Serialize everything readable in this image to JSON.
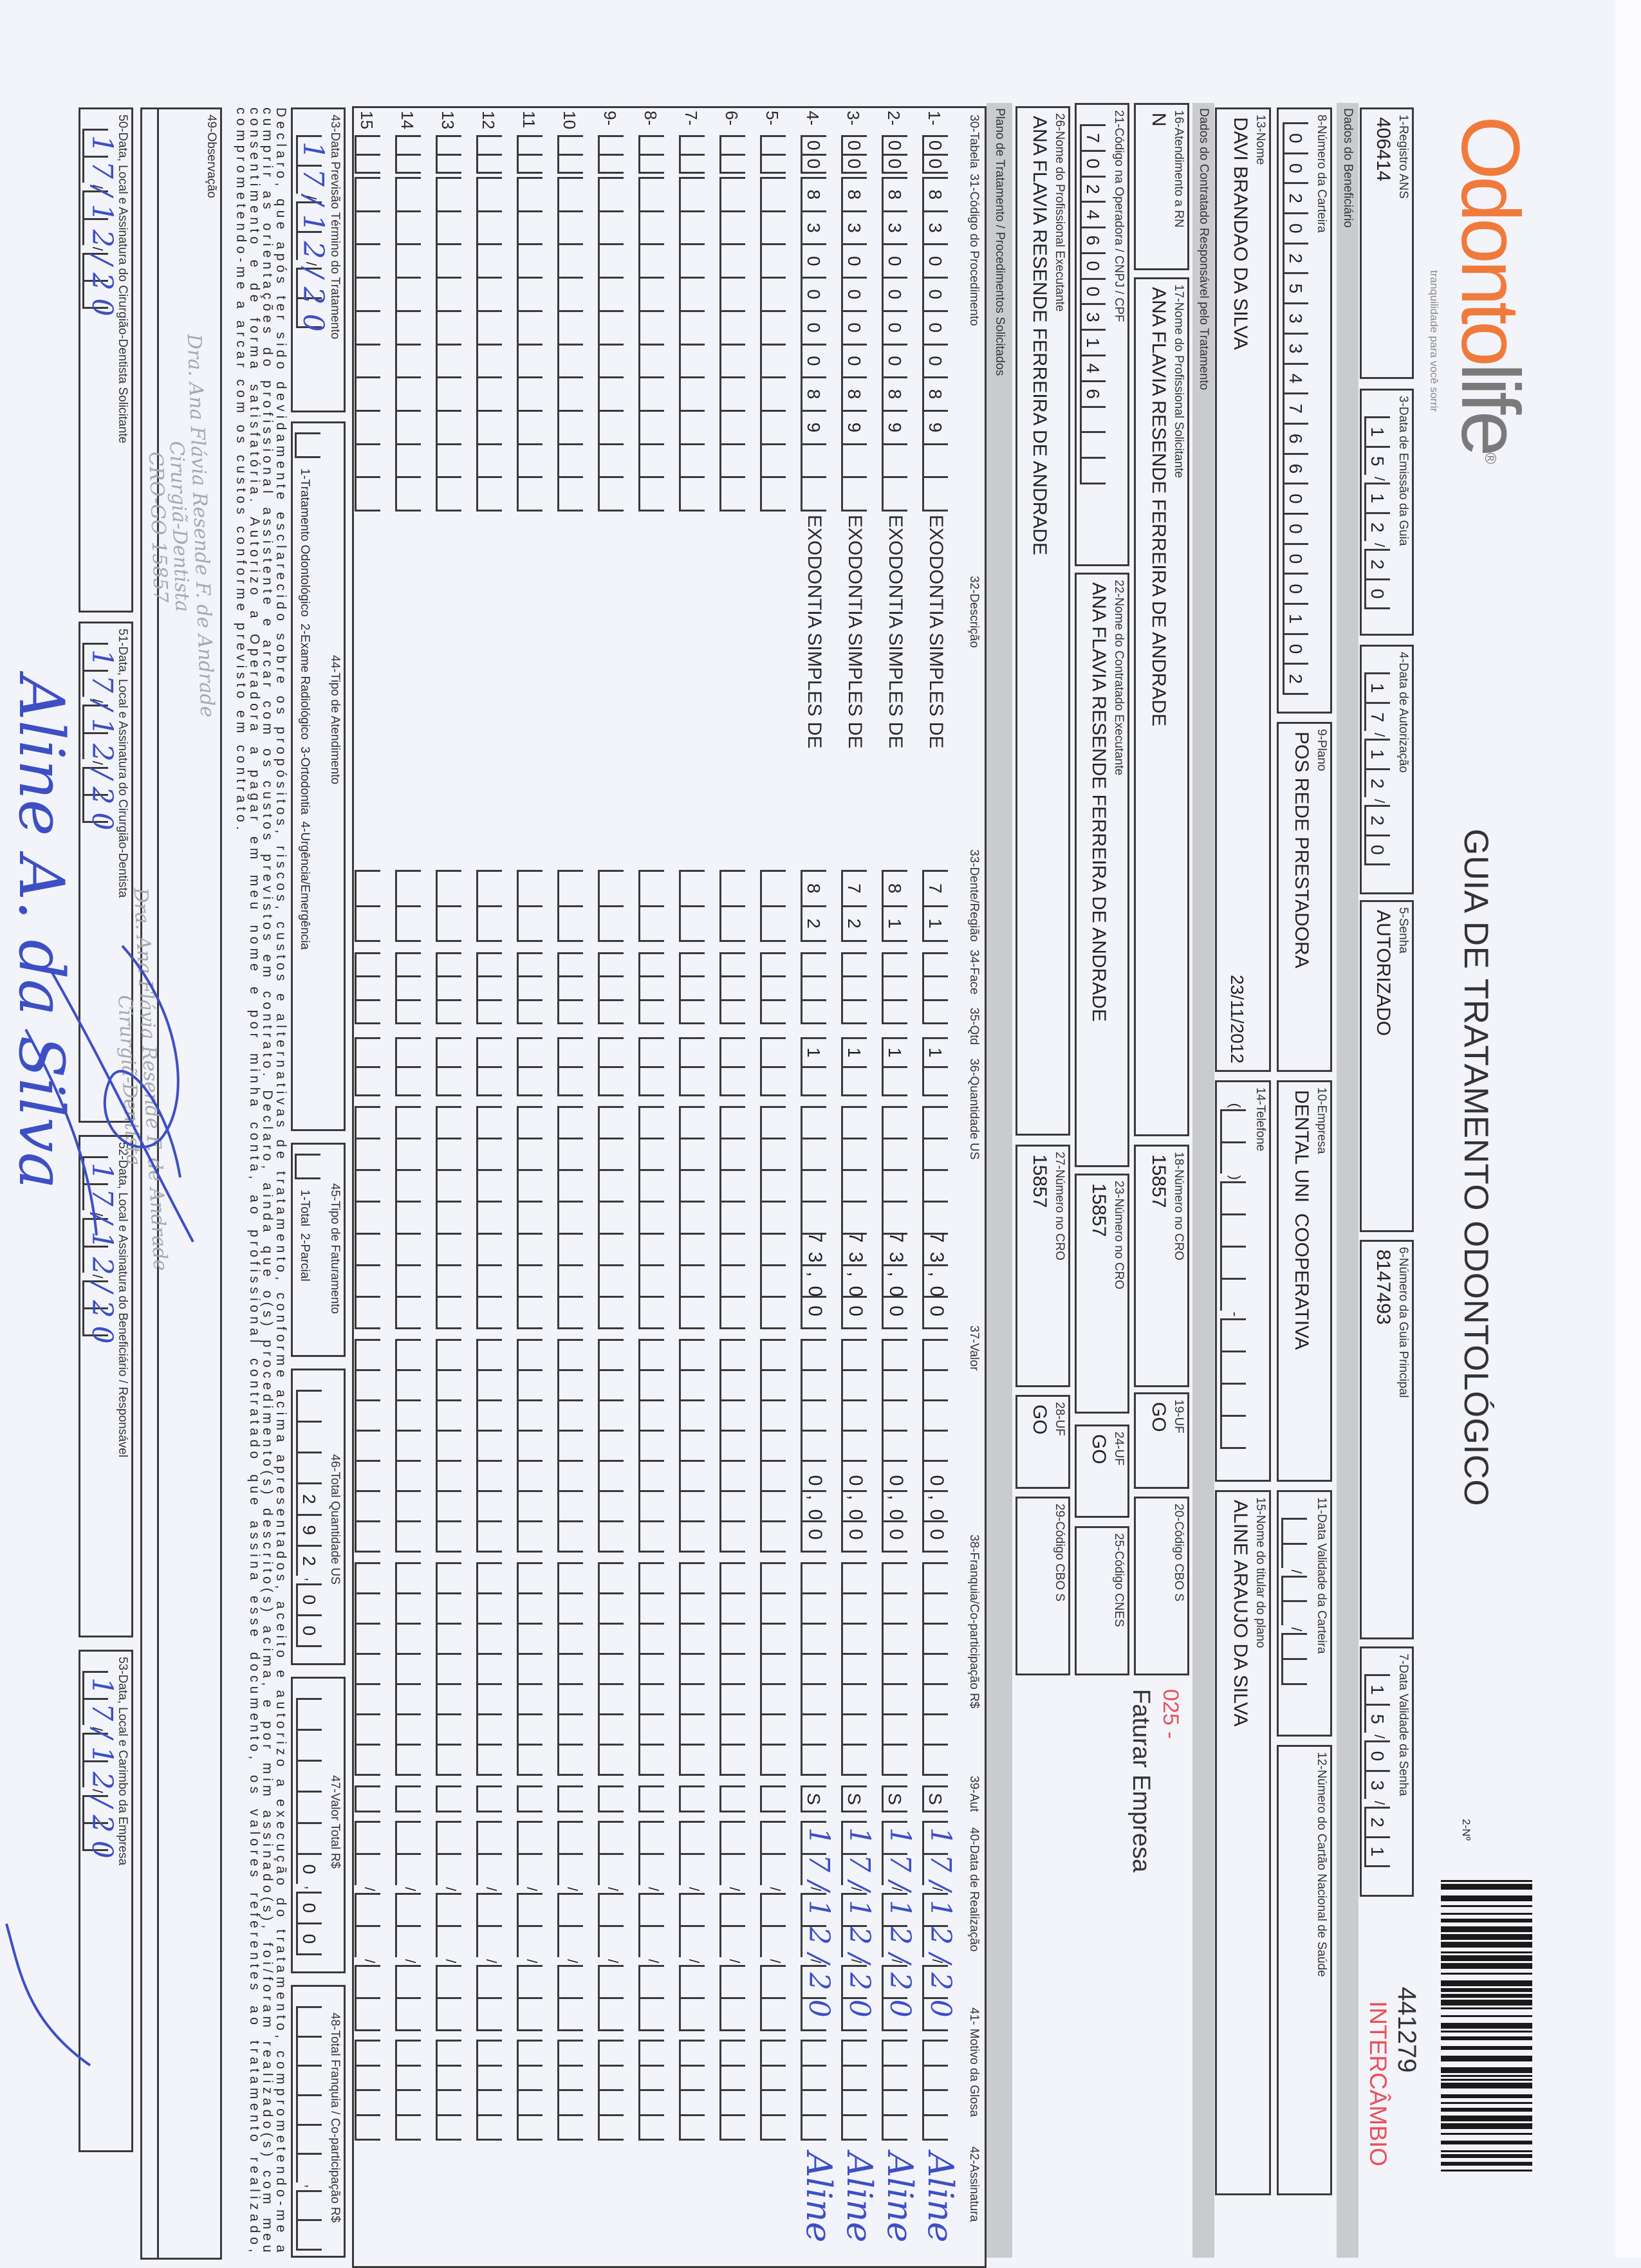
{
  "colors": {
    "logo_orange": "#f07a3c",
    "logo_gray": "#7a7a7a",
    "stamp_red": "#e8505a",
    "ink_blue": "#3d4fc4",
    "section_gray": "#c9cbcf"
  },
  "header": {
    "logo_part1": "Odonto",
    "logo_part2": "life",
    "logo_reg": "®",
    "tagline": "tranquilidade para você sorrir",
    "title": "GUIA DE TRATAMENTO ODONTOLÓGICO",
    "guide_number_label": "2-Nº",
    "guide_number": "441279",
    "intercambio": "INTERCÂMBIO",
    "barcode_icon": "barcode"
  },
  "sections": {
    "beneficiario": "Dados do Beneficiário",
    "contratado": "Dados do Contratado Responsável pelo Tratamento",
    "plano": "Plano de Tratamento / Procedimentos Solicitados"
  },
  "fields": {
    "f1": {
      "label": "1-Registro ANS",
      "value": "406414"
    },
    "f3": {
      "label": "3-Data de Emissão da Guia",
      "value": "15/12/20"
    },
    "f4": {
      "label": "4-Data de Autorização",
      "value": "17/12/20"
    },
    "f5": {
      "label": "5-Senha",
      "value": "AUTORIZADO"
    },
    "f6": {
      "label": "6-Número da Guia Principal",
      "value": "8147493"
    },
    "f7": {
      "label": "7-Data Validade da Senha",
      "value": "15/03/21"
    },
    "f8": {
      "label": "8-Número da Carteira",
      "value": "0020253347660000102"
    },
    "f9": {
      "label": "9-Plano",
      "value": "POS REDE PRESTADORA"
    },
    "f10": {
      "label": "10-Empresa",
      "value": "DENTAL UNI  COOPERATIVA"
    },
    "f11": {
      "label": "11-Data Validade da Carteira",
      "value": ""
    },
    "f12": {
      "label": "12-Número do Cartão Nacional de Saúde",
      "value": ""
    },
    "f13": {
      "label": "13-Nome",
      "value": "DAVI BRANDAO DA SILVA",
      "extra": "23/11/2012"
    },
    "f14": {
      "label": "14-Telefone",
      "value": ""
    },
    "f15": {
      "label": "15-Nome do titular do plano",
      "value": "ALINE ARAUJO DA SILVA"
    },
    "f16": {
      "label": "16-Atendimento a RN",
      "value": "N"
    },
    "f17": {
      "label": "17-Nome do Profissional Solicitante",
      "value": "ANA FLAVIA RESENDE FERREIRA DE ANDRADE"
    },
    "f18": {
      "label": "18-Número no CRO",
      "value": "15857"
    },
    "f19": {
      "label": "19-UF",
      "value": "GO"
    },
    "f20": {
      "label": "20-Código CBO S",
      "value": ""
    },
    "f21": {
      "label": "21-Código na Operadora / CNPJ / CPF",
      "value": "70246003146"
    },
    "f22": {
      "label": "22-Nome do Contratado Executante",
      "value": "ANA FLAVIA RESENDE FERREIRA DE ANDRADE"
    },
    "f23": {
      "label": "23-Número no CRO",
      "value": "15857"
    },
    "f24": {
      "label": "24-UF",
      "value": "GO"
    },
    "f25": {
      "label": "25-Código CNES",
      "value": ""
    },
    "f26": {
      "label": "26-Nome do Profissional Executante",
      "value": "ANA FLAVIA RESENDE FERREIRA DE ANDRADE"
    },
    "f27": {
      "label": "27-Número no CRO",
      "value": "15857"
    },
    "f28": {
      "label": "28-UF",
      "value": "GO"
    },
    "f29": {
      "label": "29-Código CBO S",
      "value": ""
    },
    "billing_code": "025 -",
    "billing_note": "Faturar Empresa"
  },
  "table": {
    "headers": {
      "tabela": "30-Tabela",
      "codigo": "31-Código do Procedimento",
      "descricao": "32-Descrição",
      "dente": "33-Dente/Região",
      "face": "34-Face",
      "qtd": "35-Qtd",
      "qtd_us": "36-Quantidade US",
      "valor": "37-Valor",
      "franquia": "38-Franquia/Co-participação R$",
      "aut": "39-Aut",
      "data": "40-Data de Realização",
      "glosa": "41- Motivo da Glosa",
      "assinatura": "42-Assinatura"
    },
    "rows": [
      {
        "num": "1-",
        "tabela": "00",
        "codigo": "83000089",
        "descricao": "EXODONTIA SIMPLES DE",
        "dente": "71",
        "face": "",
        "qtd": "1",
        "qtd_us": "73,00",
        "valor": "0,00",
        "franquia": "",
        "aut": "S",
        "data": "17/12/20",
        "glosa": "",
        "assinatura": "Aline"
      },
      {
        "num": "2-",
        "tabela": "00",
        "codigo": "83000089",
        "descricao": "EXODONTIA SIMPLES DE",
        "dente": "81",
        "face": "",
        "qtd": "1",
        "qtd_us": "73,00",
        "valor": "0,00",
        "franquia": "",
        "aut": "S",
        "data": "17/12/20",
        "glosa": "",
        "assinatura": "Aline"
      },
      {
        "num": "3-",
        "tabela": "00",
        "codigo": "83000089",
        "descricao": "EXODONTIA SIMPLES DE",
        "dente": "72",
        "face": "",
        "qtd": "1",
        "qtd_us": "73,00",
        "valor": "0,00",
        "franquia": "",
        "aut": "S",
        "data": "17/12/20",
        "glosa": "",
        "assinatura": "Aline"
      },
      {
        "num": "4-",
        "tabela": "00",
        "codigo": "83000089",
        "descricao": "EXODONTIA SIMPLES DE",
        "dente": "82",
        "face": "",
        "qtd": "1",
        "qtd_us": "73,00",
        "valor": "0,00",
        "franquia": "",
        "aut": "S",
        "data": "17/12/20",
        "glosa": "",
        "assinatura": "Aline"
      },
      {
        "num": "5-"
      },
      {
        "num": "6-"
      },
      {
        "num": "7-"
      },
      {
        "num": "8-"
      },
      {
        "num": "9-"
      },
      {
        "num": "10"
      },
      {
        "num": "11"
      },
      {
        "num": "12"
      },
      {
        "num": "13"
      },
      {
        "num": "14"
      },
      {
        "num": "15"
      }
    ]
  },
  "footer": {
    "f43": {
      "label": "43-Data Previsão Término do Tratamento",
      "value": "",
      "handwritten": "17/12/20"
    },
    "f44": {
      "label": "44-Tipo de Atendimento",
      "options": "1-Tratamento Odontológico  2-Exame Radiológico  3-Ortodontia  4-Urgência/Emergência"
    },
    "f45": {
      "label": "45-Tipo de Faturamento",
      "options": "1-Total  2-Parcial"
    },
    "f46": {
      "label": "46-Total Quantidade US",
      "value": "292,00"
    },
    "f47": {
      "label": "47-Valor Total R$",
      "value": "0,00"
    },
    "f48": {
      "label": "48-Total Franquia / Co-participação R$",
      "value": ""
    },
    "declaration": "Declaro, que após ter sido devidamente esclarecido sobre os propósitos, riscos, custos e alternativas de tratamento, conforme acima apresentados, aceito e autorizo a execução do tratamento, comprometendo-me a cumprir as orientações do profissional assistente e arcar com os custos previstos em contrato. Declaro, ainda que o(s) procedimento(s) descrito(s) acima, e por mim assinado(s), foi/foram realizado(s) com meu consentimento e de forma satisfatória. Autorizo a Operadora a pagar em meu nome e por minha conta, ao profissional contratado que assina esse documento, os valores referentes ao tratamento realizado, comprometendo-me a arcar com os custos conforme previsto em contrato.",
    "f49": {
      "label": "49-Observação"
    },
    "f50": {
      "label": "50-Data, Local e Assinatura do Cirurgião-Dentista Solicitante",
      "handwritten": "17/12/20"
    },
    "f51": {
      "label": "51-Data, Local e Assinatura do Cirurgião-Dentista",
      "handwritten": "17/12/20"
    },
    "f52": {
      "label": "52-Data, Local e Assinatura do Beneficiário / Responsável",
      "handwritten": "17/12/20"
    },
    "f53": {
      "label": "53-Data, Local e Carimbo da Empresa",
      "handwritten": "17/12/20"
    },
    "stamp": {
      "line1": "Dra. Ana Flávia Resende F. de Andrade",
      "line2": "Cirurgiã-Dentista",
      "line3": "CRO-GO 15857"
    },
    "beneficiary_signature": "Aline A. da Silva"
  }
}
